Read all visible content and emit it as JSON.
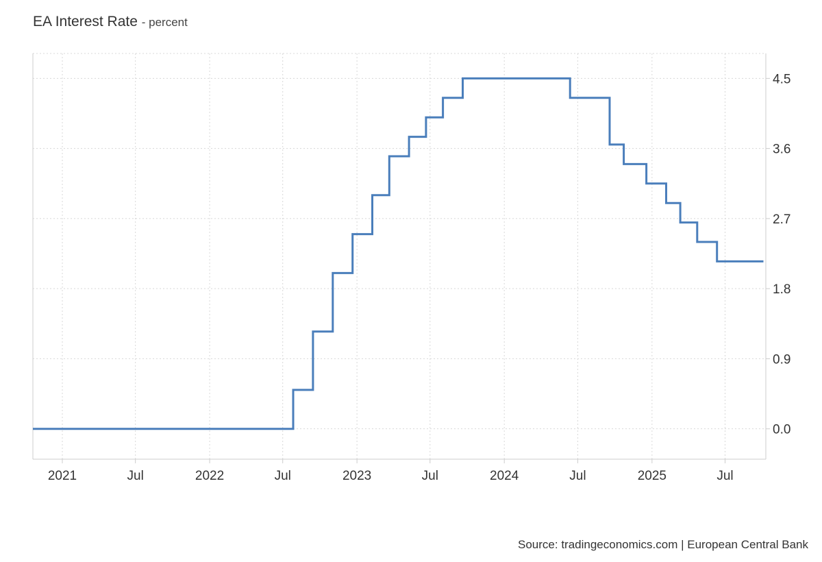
{
  "header": {
    "title": "EA Interest Rate",
    "unit": "- percent"
  },
  "footer": {
    "source": "Source: tradingeconomics.com | European Central Bank"
  },
  "chart_data": {
    "type": "line",
    "step": true,
    "title": "EA Interest Rate",
    "xlabel": "",
    "ylabel": "percent",
    "ylim": [
      -0.39,
      4.82
    ],
    "y_axis_side": "right",
    "yticks": [
      0.0,
      0.9,
      1.8,
      2.7,
      3.6,
      4.5
    ],
    "ytick_labels": [
      "0.0",
      "0.9",
      "1.8",
      "2.7",
      "3.6",
      "4.5"
    ],
    "xlim": [
      "2020-10-20",
      "2025-10-10"
    ],
    "xticks": [
      {
        "date": "2021-01-01",
        "label": "2021"
      },
      {
        "date": "2021-07-01",
        "label": "Jul"
      },
      {
        "date": "2022-01-01",
        "label": "2022"
      },
      {
        "date": "2022-07-01",
        "label": "Jul"
      },
      {
        "date": "2023-01-01",
        "label": "2023"
      },
      {
        "date": "2023-07-01",
        "label": "Jul"
      },
      {
        "date": "2024-01-01",
        "label": "2024"
      },
      {
        "date": "2024-07-01",
        "label": "Jul"
      },
      {
        "date": "2025-01-01",
        "label": "2025"
      },
      {
        "date": "2025-07-01",
        "label": "Jul"
      }
    ],
    "grid": true,
    "color": "#4a7ebb",
    "series": [
      {
        "values": [
          {
            "x": "2020-10-20",
            "y": 0.0
          },
          {
            "x": "2022-07-27",
            "y": 0.5
          },
          {
            "x": "2022-09-14",
            "y": 1.25
          },
          {
            "x": "2022-11-02",
            "y": 2.0
          },
          {
            "x": "2022-12-21",
            "y": 2.5
          },
          {
            "x": "2023-02-08",
            "y": 3.0
          },
          {
            "x": "2023-03-22",
            "y": 3.5
          },
          {
            "x": "2023-05-10",
            "y": 3.75
          },
          {
            "x": "2023-06-21",
            "y": 4.0
          },
          {
            "x": "2023-08-02",
            "y": 4.25
          },
          {
            "x": "2023-09-20",
            "y": 4.5
          },
          {
            "x": "2024-06-12",
            "y": 4.25
          },
          {
            "x": "2024-09-18",
            "y": 3.65
          },
          {
            "x": "2024-10-23",
            "y": 3.4
          },
          {
            "x": "2024-12-18",
            "y": 3.15
          },
          {
            "x": "2025-02-05",
            "y": 2.9
          },
          {
            "x": "2025-03-12",
            "y": 2.65
          },
          {
            "x": "2025-04-23",
            "y": 2.4
          },
          {
            "x": "2025-06-11",
            "y": 2.15
          },
          {
            "x": "2025-10-04",
            "y": 2.15
          }
        ]
      }
    ]
  }
}
